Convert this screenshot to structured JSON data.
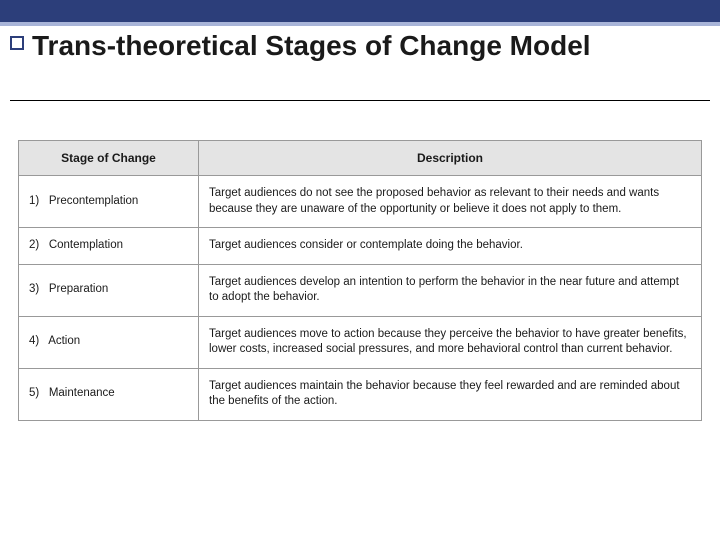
{
  "title": "Trans-theoretical Stages of Change Model",
  "table": {
    "headers": {
      "stage": "Stage of Change",
      "description": "Description"
    },
    "rows": [
      {
        "num": "1)",
        "stage": "Precontemplation",
        "description": "Target audiences do not see the proposed behavior as relevant to their needs and wants because they are unaware of the opportunity or believe it does not apply to them."
      },
      {
        "num": "2)",
        "stage": "Contemplation",
        "description": "Target audiences consider or contemplate doing the behavior."
      },
      {
        "num": "3)",
        "stage": "Preparation",
        "description": "Target audiences develop an intention to perform the behavior in the near future and attempt to adopt the behavior."
      },
      {
        "num": "4)",
        "stage": "Action",
        "description": "Target audiences move to action because they perceive the behavior to have greater benefits, lower costs, increased social pressures, and more behavioral control than current behavior."
      },
      {
        "num": "5)",
        "stage": "Maintenance",
        "description": "Target audiences maintain the behavior because they feel rewarded and are reminded about the benefits of the action."
      }
    ]
  },
  "colors": {
    "accent_dark": "#2c3e7a",
    "accent_light": "#a8b4d8",
    "header_bg": "#e4e4e4",
    "border": "#999999",
    "text": "#1a1a1a",
    "background": "#ffffff"
  }
}
